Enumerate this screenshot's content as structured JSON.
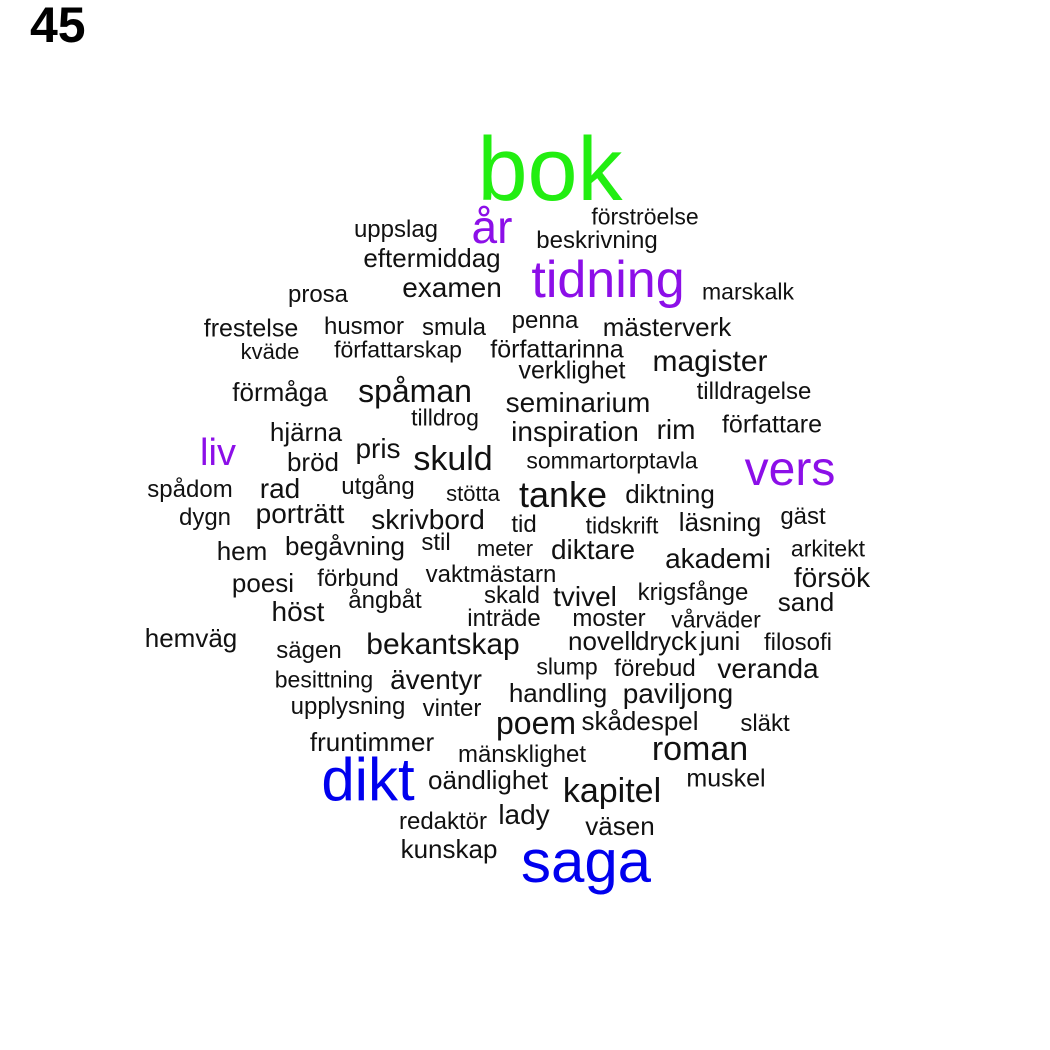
{
  "page_number": "45",
  "colors": {
    "green": "#22ee11",
    "purple": "#8c0fe8",
    "blue": "#0000ee",
    "black": "#111111"
  },
  "words": [
    {
      "text": "bok",
      "color": "green"
    },
    {
      "text": "år",
      "color": "purple"
    },
    {
      "text": "förströelse",
      "color": "black"
    },
    {
      "text": "uppslag",
      "color": "black"
    },
    {
      "text": "beskrivning",
      "color": "black"
    },
    {
      "text": "eftermiddag",
      "color": "black"
    },
    {
      "text": "tidning",
      "color": "purple"
    },
    {
      "text": "examen",
      "color": "black"
    },
    {
      "text": "marskalk",
      "color": "black"
    },
    {
      "text": "prosa",
      "color": "black"
    },
    {
      "text": "penna",
      "color": "black"
    },
    {
      "text": "frestelse",
      "color": "black"
    },
    {
      "text": "husmor",
      "color": "black"
    },
    {
      "text": "smula",
      "color": "black"
    },
    {
      "text": "mästerverk",
      "color": "black"
    },
    {
      "text": "kväde",
      "color": "black"
    },
    {
      "text": "författarskap",
      "color": "black"
    },
    {
      "text": "författarinna",
      "color": "black"
    },
    {
      "text": "magister",
      "color": "black"
    },
    {
      "text": "verklighet",
      "color": "black"
    },
    {
      "text": "förmåga",
      "color": "black"
    },
    {
      "text": "spåman",
      "color": "black"
    },
    {
      "text": "tilldragelse",
      "color": "black"
    },
    {
      "text": "seminarium",
      "color": "black"
    },
    {
      "text": "tilldrog",
      "color": "black"
    },
    {
      "text": "författare",
      "color": "black"
    },
    {
      "text": "hjärna",
      "color": "black"
    },
    {
      "text": "inspiration",
      "color": "black"
    },
    {
      "text": "rim",
      "color": "black"
    },
    {
      "text": "liv",
      "color": "purple"
    },
    {
      "text": "pris",
      "color": "black"
    },
    {
      "text": "skuld",
      "color": "black"
    },
    {
      "text": "vers",
      "color": "purple"
    },
    {
      "text": "bröd",
      "color": "black"
    },
    {
      "text": "sommartorptavla",
      "color": "black"
    },
    {
      "text": "spådom",
      "color": "black"
    },
    {
      "text": "rad",
      "color": "black"
    },
    {
      "text": "utgång",
      "color": "black"
    },
    {
      "text": "stötta",
      "color": "black"
    },
    {
      "text": "tanke",
      "color": "black"
    },
    {
      "text": "diktning",
      "color": "black"
    },
    {
      "text": "dygn",
      "color": "black"
    },
    {
      "text": "porträtt",
      "color": "black"
    },
    {
      "text": "skrivbord",
      "color": "black"
    },
    {
      "text": "tid",
      "color": "black"
    },
    {
      "text": "tidskrift",
      "color": "black"
    },
    {
      "text": "läsning",
      "color": "black"
    },
    {
      "text": "gäst",
      "color": "black"
    },
    {
      "text": "hem",
      "color": "black"
    },
    {
      "text": "begåvning",
      "color": "black"
    },
    {
      "text": "stil",
      "color": "black"
    },
    {
      "text": "meter",
      "color": "black"
    },
    {
      "text": "diktare",
      "color": "black"
    },
    {
      "text": "akademi",
      "color": "black"
    },
    {
      "text": "arkitekt",
      "color": "black"
    },
    {
      "text": "poesi",
      "color": "black"
    },
    {
      "text": "förbund",
      "color": "black"
    },
    {
      "text": "vaktmästarn",
      "color": "black"
    },
    {
      "text": "försök",
      "color": "black"
    },
    {
      "text": "ångbåt",
      "color": "black"
    },
    {
      "text": "skald",
      "color": "black"
    },
    {
      "text": "tvivel",
      "color": "black"
    },
    {
      "text": "krigsfånge",
      "color": "black"
    },
    {
      "text": "höst",
      "color": "black"
    },
    {
      "text": "sand",
      "color": "black"
    },
    {
      "text": "inträde",
      "color": "black"
    },
    {
      "text": "moster",
      "color": "black"
    },
    {
      "text": "vårväder",
      "color": "black"
    },
    {
      "text": "hemväg",
      "color": "black"
    },
    {
      "text": "sägen",
      "color": "black"
    },
    {
      "text": "bekantskap",
      "color": "black"
    },
    {
      "text": "novell",
      "color": "black"
    },
    {
      "text": "dryck",
      "color": "black"
    },
    {
      "text": "juni",
      "color": "black"
    },
    {
      "text": "filosofi",
      "color": "black"
    },
    {
      "text": "slump",
      "color": "black"
    },
    {
      "text": "förebud",
      "color": "black"
    },
    {
      "text": "veranda",
      "color": "black"
    },
    {
      "text": "besittning",
      "color": "black"
    },
    {
      "text": "äventyr",
      "color": "black"
    },
    {
      "text": "handling",
      "color": "black"
    },
    {
      "text": "paviljong",
      "color": "black"
    },
    {
      "text": "upplysning",
      "color": "black"
    },
    {
      "text": "vinter",
      "color": "black"
    },
    {
      "text": "poem",
      "color": "black"
    },
    {
      "text": "skådespel",
      "color": "black"
    },
    {
      "text": "släkt",
      "color": "black"
    },
    {
      "text": "fruntimmer",
      "color": "black"
    },
    {
      "text": "mänsklighet",
      "color": "black"
    },
    {
      "text": "roman",
      "color": "black"
    },
    {
      "text": "dikt",
      "color": "blue"
    },
    {
      "text": "oändlighet",
      "color": "black"
    },
    {
      "text": "muskel",
      "color": "black"
    },
    {
      "text": "kapitel",
      "color": "black"
    },
    {
      "text": "redaktör",
      "color": "black"
    },
    {
      "text": "lady",
      "color": "black"
    },
    {
      "text": "väsen",
      "color": "black"
    },
    {
      "text": "kunskap",
      "color": "black"
    },
    {
      "text": "saga",
      "color": "blue"
    }
  ]
}
